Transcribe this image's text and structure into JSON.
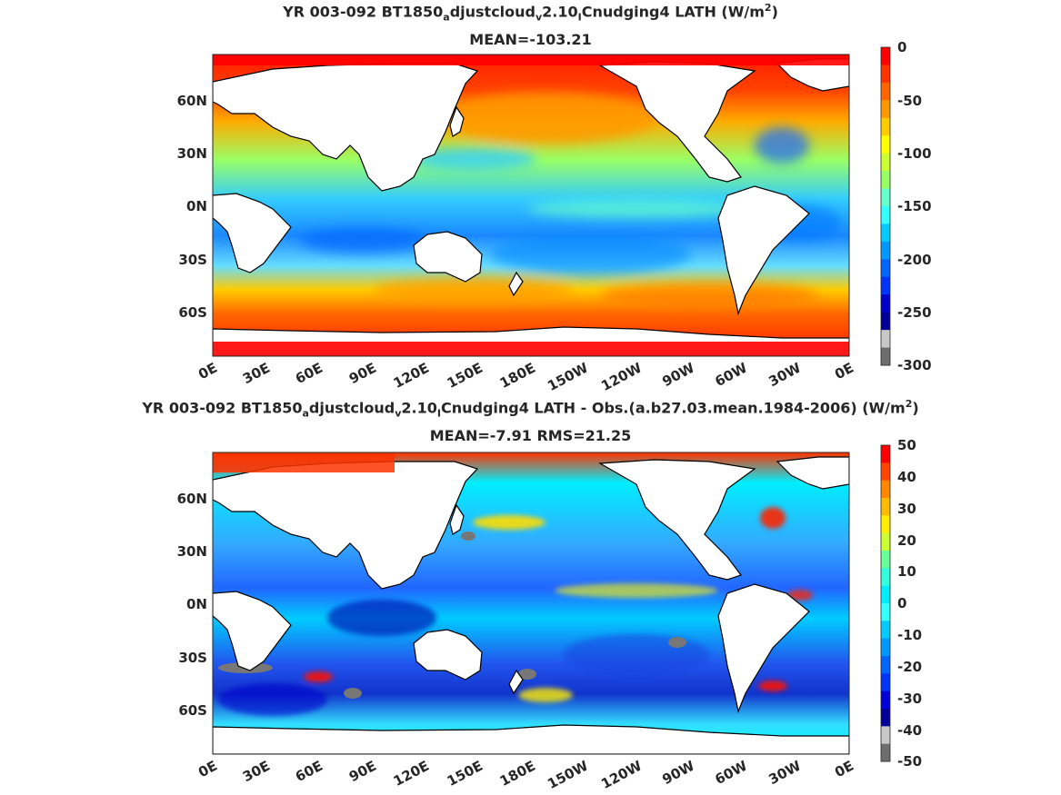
{
  "panels": [
    {
      "title_parts": {
        "p1": "YR 003-092 BT1850",
        "sub1": "a",
        "p2": "djustcloud",
        "sub2": "v",
        "p3": "2.10",
        "sub3": "I",
        "p4": "Cnudging4  LATH (W/m",
        "sup": "2",
        "p5": ")"
      },
      "subtitle": "MEAN=-103.21",
      "y_ticks": [
        "60N",
        "30N",
        "0N",
        "30S",
        "60S"
      ],
      "x_ticks": [
        "0E",
        "30E",
        "60E",
        "90E",
        "120E",
        "150E",
        "180E",
        "150W",
        "120W",
        "90W",
        "60W",
        "30W",
        "0E"
      ],
      "colorbar_ticks": [
        "0",
        "-50",
        "-100",
        "-150",
        "-200",
        "-250",
        "-300"
      ]
    },
    {
      "title_parts": {
        "p1": "YR 003-092 BT1850",
        "sub1": "a",
        "p2": "djustcloud",
        "sub2": "v",
        "p3": "2.10",
        "sub3": "I",
        "p4": "Cnudging4 LATH - Obs.(a.b27.03.mean.1984-2006) (W/m",
        "sup": "2",
        "p5": ")"
      },
      "subtitle": "MEAN=-7.91 RMS=21.25",
      "y_ticks": [
        "60N",
        "30N",
        "0N",
        "30S",
        "60S"
      ],
      "x_ticks": [
        "0E",
        "30E",
        "60E",
        "90E",
        "120E",
        "150E",
        "180E",
        "150W",
        "120W",
        "90W",
        "60W",
        "30W",
        "0E"
      ],
      "colorbar_ticks": [
        "50",
        "40",
        "30",
        "20",
        "10",
        "0",
        "-10",
        "-20",
        "-30",
        "-40",
        "-50"
      ]
    }
  ],
  "chart_data": [
    {
      "type": "heatmap",
      "title": "YR 003-092 BT1850_adjustcloud_v2.10_ICnudging4  LATH (W/m^2)",
      "subtitle": "MEAN=-103.21",
      "x_tick_labels": [
        "0E",
        "30E",
        "60E",
        "90E",
        "120E",
        "150E",
        "180E",
        "150W",
        "120W",
        "90W",
        "60W",
        "30W",
        "0E"
      ],
      "y_tick_labels": [
        "60N",
        "30N",
        "0N",
        "30S",
        "60S"
      ],
      "colorbar": {
        "range": [
          -300,
          0
        ],
        "tick_labels": [
          "0",
          "-50",
          "-100",
          "-150",
          "-200",
          "-250",
          "-300"
        ],
        "colors_top_to_bottom": [
          "#ff0000",
          "#ff3300",
          "#ff6600",
          "#ff9900",
          "#ffcc00",
          "#ffff00",
          "#ccff33",
          "#99ff66",
          "#66ffcc",
          "#33ffff",
          "#00ccff",
          "#0099ff",
          "#0066ff",
          "#0033ff",
          "#0000cc",
          "#000099",
          "#c8c8c8",
          "#6e6e6e"
        ]
      },
      "mean": -103.21
    },
    {
      "type": "heatmap",
      "title": "YR 003-092 BT1850_adjustcloud_v2.10_ICnudging4 LATH - Obs.(a.b27.03.mean.1984-2006) (W/m^2)",
      "subtitle": "MEAN=-7.91 RMS=21.25",
      "x_tick_labels": [
        "0E",
        "30E",
        "60E",
        "90E",
        "120E",
        "150E",
        "180E",
        "150W",
        "120W",
        "90W",
        "60W",
        "30W",
        "0E"
      ],
      "y_tick_labels": [
        "60N",
        "30N",
        "0N",
        "30S",
        "60S"
      ],
      "colorbar": {
        "range": [
          -50,
          50
        ],
        "tick_labels": [
          "50",
          "40",
          "30",
          "20",
          "10",
          "0",
          "-10",
          "-20",
          "-30",
          "-40",
          "-50"
        ],
        "colors_top_to_bottom": [
          "#ff0000",
          "#ff4400",
          "#ff8800",
          "#ffbb00",
          "#ffee00",
          "#ccff33",
          "#66ff99",
          "#33ffdd",
          "#00eeff",
          "#33ffff",
          "#00ccff",
          "#0099ff",
          "#0066ff",
          "#0033ff",
          "#0000dd",
          "#000099",
          "#c8c8c8",
          "#6e6e6e"
        ]
      },
      "mean": -7.91,
      "rms": 21.25
    }
  ]
}
